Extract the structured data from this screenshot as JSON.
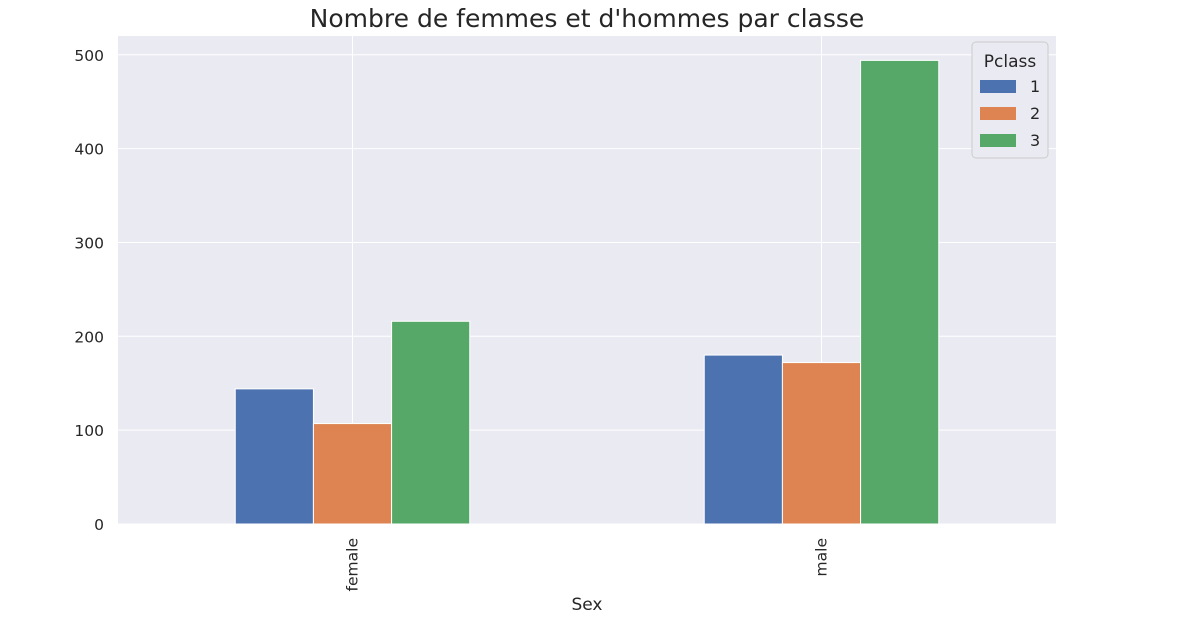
{
  "chart_data": {
    "type": "bar",
    "title": "Nombre de femmes et d'hommes par classe",
    "xlabel": "Sex",
    "ylabel": "",
    "categories": [
      "female",
      "male"
    ],
    "series": [
      {
        "name": "1",
        "values": [
          144,
          180
        ]
      },
      {
        "name": "2",
        "values": [
          107,
          172
        ]
      },
      {
        "name": "3",
        "values": [
          216,
          494
        ]
      }
    ],
    "ylim": [
      0,
      520
    ],
    "yticks": [
      0,
      100,
      200,
      300,
      400,
      500
    ],
    "legend": {
      "title": "Pclass",
      "position": "top-right"
    },
    "grid": true,
    "colors": [
      "#4c72b0",
      "#dd8452",
      "#55a868"
    ],
    "background": "#eaeaf2"
  }
}
